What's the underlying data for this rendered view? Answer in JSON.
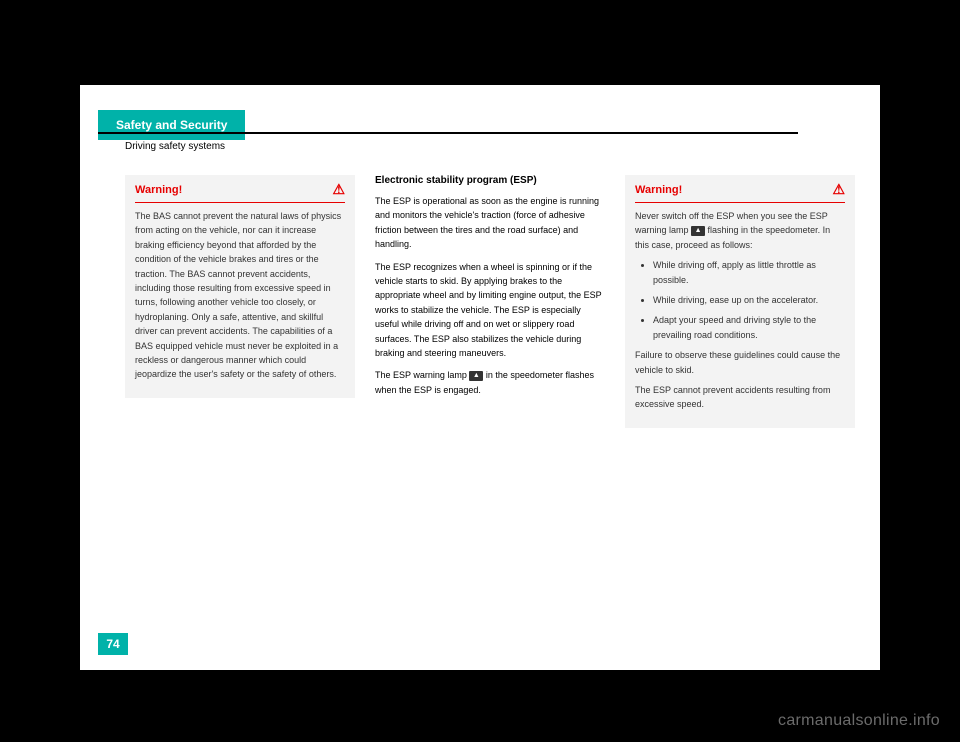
{
  "header": {
    "tab": "Safety and Security",
    "section_title": "Driving safety systems"
  },
  "page_number": "74",
  "col1": {
    "warning": {
      "title": "Warning!",
      "body": "The BAS cannot prevent the natural laws of physics from acting on the vehicle, nor can it increase braking efficiency beyond that afforded by the condition of the vehicle brakes and tires or the traction. The BAS cannot prevent accidents, including those resulting from excessive speed in turns, following another vehicle too closely, or hydroplaning. Only a safe, attentive, and skillful driver can prevent accidents. The capabilities of a BAS equipped vehicle must never be exploited in a reckless or dangerous manner which could jeopardize the user's safety or the safety of others."
    }
  },
  "col2": {
    "title": "Electronic stability program (ESP)",
    "p1": "The ESP is operational as soon as the engine is running and monitors the vehicle's traction (force of adhesive friction between the tires and the road surface) and handling.",
    "p2": "The ESP recognizes when a wheel is spinning or if the vehicle starts to skid. By applying brakes to the appropriate wheel and by limiting engine output, the ESP works to stabilize the vehicle. The ESP is especially useful while driving off and on wet or slippery road surfaces. The ESP also stabilizes the vehicle during braking and steering maneuvers.",
    "p3_a": "The ESP warning lamp ",
    "p3_b": " in the speedometer flashes when the ESP is engaged."
  },
  "col3": {
    "warning": {
      "title": "Warning!",
      "intro_a": "Never switch off the ESP when you see the ESP warning lamp ",
      "intro_b": " flashing in the speedometer. In this case, proceed as follows:",
      "bullets": [
        "While driving off, apply as little throttle as possible.",
        "While driving, ease up on the accelerator.",
        "Adapt your speed and driving style to the prevailing road conditions."
      ],
      "outro1": "Failure to observe these guidelines could cause the vehicle to skid.",
      "outro2": "The ESP cannot prevent accidents resulting from excessive speed."
    }
  },
  "icons": {
    "esp_glyph": "▲",
    "warning_glyph": "⚠"
  },
  "watermark": "carmanualsonline.info",
  "colors": {
    "teal": "#00b2a9",
    "red": "#e60000",
    "grey_box": "#f3f3f3",
    "black": "#000000",
    "white": "#ffffff"
  }
}
